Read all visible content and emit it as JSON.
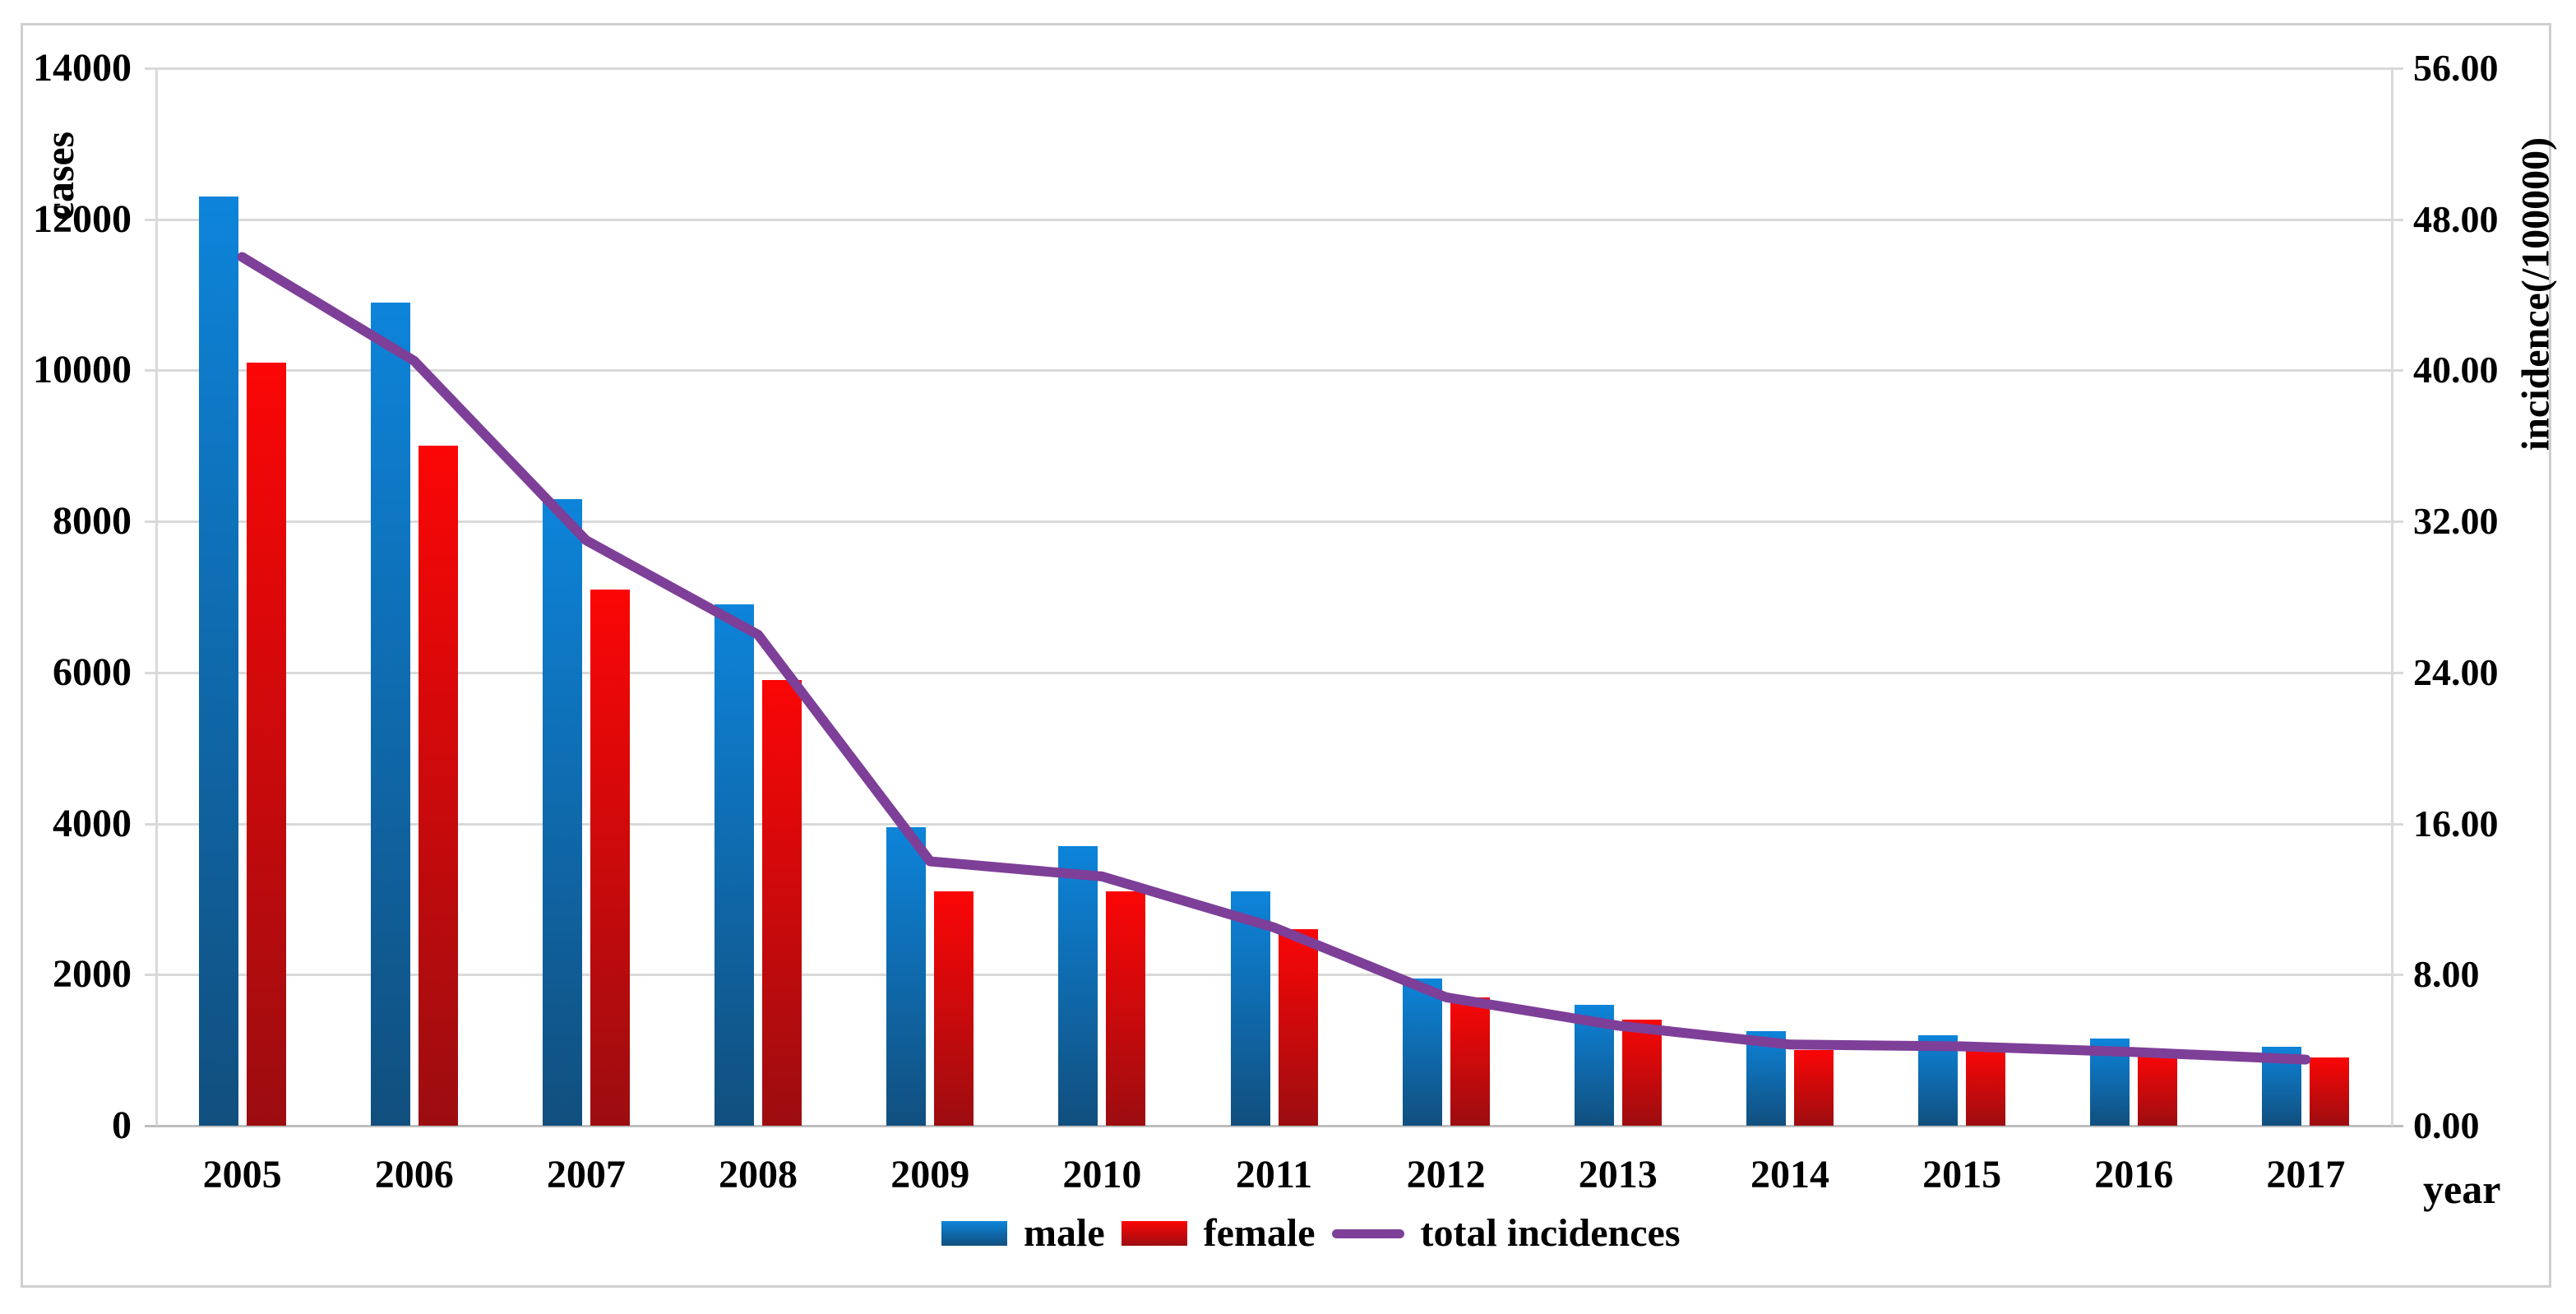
{
  "chart_data": {
    "type": "bar+line",
    "categories": [
      "2005",
      "2006",
      "2007",
      "2008",
      "2009",
      "2010",
      "2011",
      "2012",
      "2013",
      "2014",
      "2015",
      "2016",
      "2017"
    ],
    "series": [
      {
        "name": "male",
        "axis": "left",
        "type": "bar",
        "values": [
          12300,
          10900,
          8300,
          6900,
          3950,
          3700,
          3100,
          1950,
          1600,
          1250,
          1200,
          1150,
          1050
        ]
      },
      {
        "name": "female",
        "axis": "left",
        "type": "bar",
        "values": [
          10100,
          9000,
          7100,
          5900,
          3100,
          3100,
          2600,
          1700,
          1400,
          1000,
          1000,
          950,
          900
        ]
      },
      {
        "name": "total incidences",
        "axis": "right",
        "type": "line",
        "values": [
          46.0,
          40.5,
          31.0,
          26.0,
          14.0,
          13.2,
          10.5,
          6.8,
          5.3,
          4.3,
          4.2,
          3.9,
          3.5
        ]
      }
    ],
    "left_axis": {
      "label": "cases",
      "tick_values": [
        0,
        2000,
        4000,
        6000,
        8000,
        10000,
        12000,
        14000
      ],
      "min": 0,
      "max": 14000
    },
    "right_axis": {
      "label": "incidence(/100000)",
      "tick_labels": [
        "0.00",
        "8.00",
        "16.00",
        "24.00",
        "32.00",
        "40.00",
        "48.00",
        "56.00"
      ],
      "min": 0,
      "max": 56
    },
    "xlabel": "year",
    "legend": {
      "male": "male",
      "female": "female",
      "line": "total incidences"
    },
    "grid": "horizontal",
    "legend_position": "bottom-center",
    "colors": {
      "male_top": "#0d84da",
      "male_bottom": "#114f7e",
      "female_top": "#fb0606",
      "female_bottom": "#9c0d10",
      "line": "#7d3f98",
      "gridline": "#d9d9d9",
      "axis_line": "#bdbdbd",
      "figure_border": "#cfcfcf",
      "text": "#000000",
      "background": "#ffffff"
    }
  }
}
